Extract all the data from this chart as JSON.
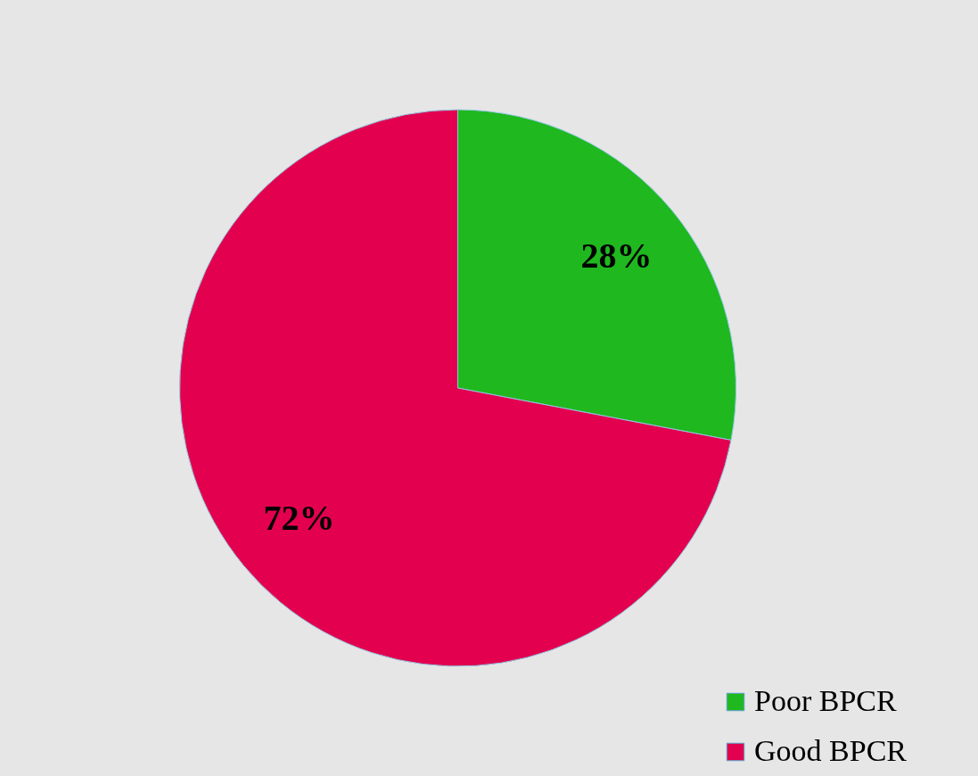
{
  "chart_data": {
    "type": "pie",
    "categories": [
      "Poor BPCR",
      "Good BPCR"
    ],
    "values": [
      28,
      72
    ],
    "colors": [
      "#1fb81f",
      "#e3004f"
    ],
    "value_labels": [
      "28%",
      "72%"
    ],
    "legend": "bottom right"
  }
}
